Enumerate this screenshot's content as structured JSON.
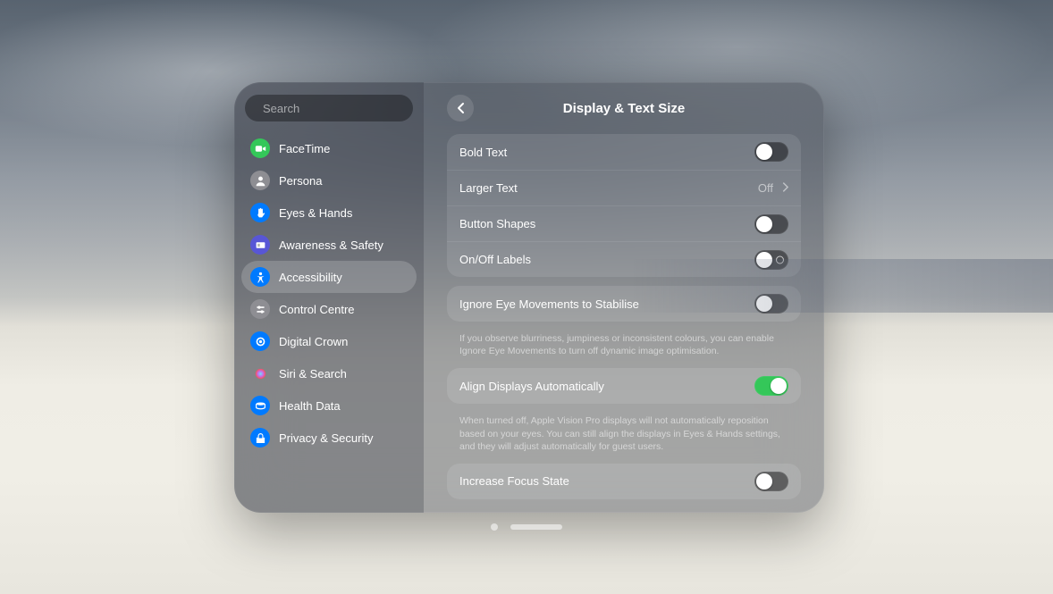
{
  "search": {
    "placeholder": "Search"
  },
  "sidebar": {
    "items": [
      {
        "label": "FaceTime",
        "color": "#34c759",
        "icon": "video"
      },
      {
        "label": "Persona",
        "color": "#8e8e93",
        "icon": "person"
      },
      {
        "label": "Eyes & Hands",
        "color": "#007aff",
        "icon": "hand"
      },
      {
        "label": "Awareness & Safety",
        "color": "#5856d6",
        "icon": "badge"
      },
      {
        "label": "Accessibility",
        "color": "#007aff",
        "icon": "accessibility",
        "selected": true
      },
      {
        "label": "Control Centre",
        "color": "#8e8e93",
        "icon": "sliders"
      },
      {
        "label": "Digital Crown",
        "color": "#007aff",
        "icon": "crown"
      },
      {
        "label": "Siri & Search",
        "color": "#ff2d92",
        "icon": "siri"
      },
      {
        "label": "Health Data",
        "color": "#007aff",
        "icon": "health"
      },
      {
        "label": "Privacy & Security",
        "color": "#007aff",
        "icon": "privacy"
      }
    ]
  },
  "page": {
    "title": "Display & Text Size"
  },
  "groups": [
    {
      "rows": [
        {
          "kind": "toggle",
          "label": "Bold Text",
          "on": false
        },
        {
          "kind": "nav",
          "label": "Larger Text",
          "value": "Off"
        },
        {
          "kind": "toggle",
          "label": "Button Shapes",
          "on": false
        },
        {
          "kind": "toggle",
          "label": "On/Off Labels",
          "on": false,
          "showLabel": true
        }
      ]
    },
    {
      "rows": [
        {
          "kind": "toggle",
          "label": "Ignore Eye Movements to Stabilise",
          "on": false
        }
      ],
      "footnote": "If you observe blurriness, jumpiness or inconsistent colours, you can enable Ignore Eye Movements to turn off dynamic image optimisation."
    },
    {
      "rows": [
        {
          "kind": "toggle",
          "label": "Align Displays Automatically",
          "on": true
        }
      ],
      "footnote": "When turned off, Apple Vision Pro displays will not automatically reposition based on your eyes. You can still align the displays in Eyes & Hands settings, and they will adjust automatically for guest users."
    },
    {
      "rows": [
        {
          "kind": "toggle",
          "label": "Increase Focus State",
          "on": false
        }
      ]
    }
  ],
  "colors": {
    "toggle_on": "#34c759",
    "toggle_off": "rgba(0,0,0,0.45)"
  }
}
